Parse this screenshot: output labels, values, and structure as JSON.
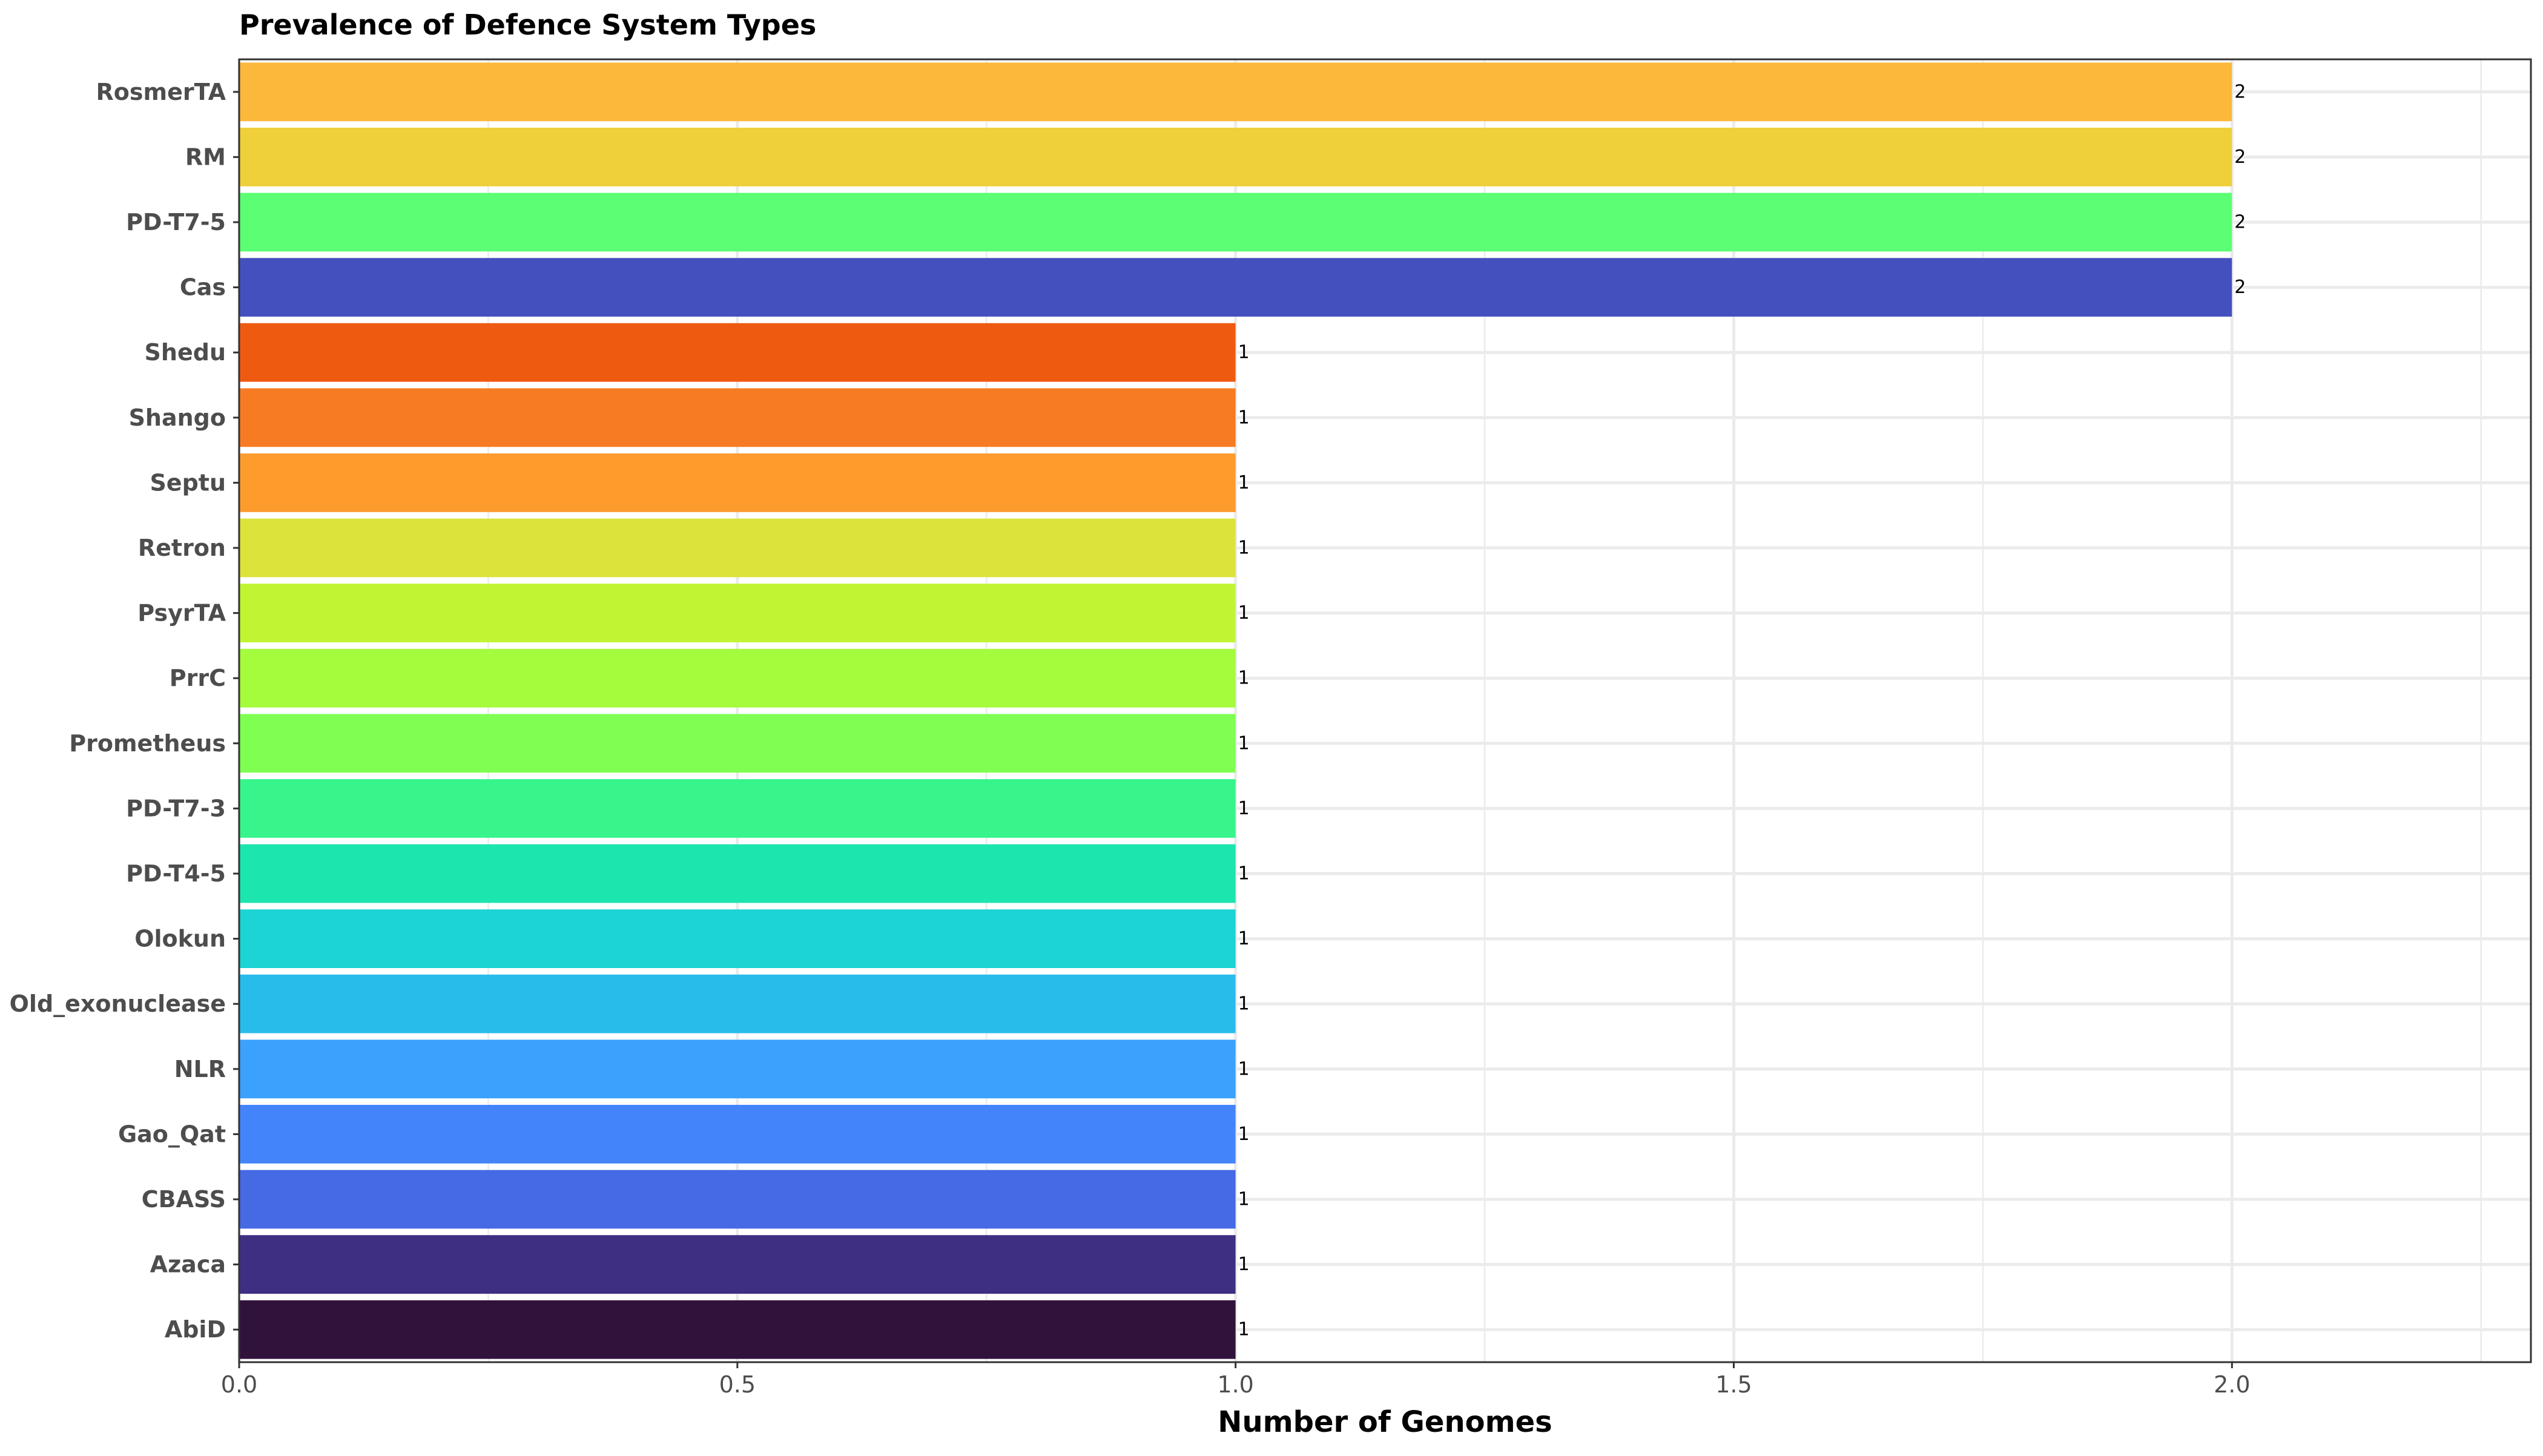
{
  "chart_data": {
    "type": "bar",
    "orientation": "horizontal",
    "title": "Prevalence of Defence System Types",
    "xlabel": "Number of Genomes",
    "ylabel": "",
    "xlim": [
      0,
      2.3
    ],
    "x_ticks": [
      "0.0",
      "0.5",
      "1.0",
      "1.5",
      "2.0"
    ],
    "grid": true,
    "categories": [
      "RosmerTA",
      "RM",
      "PD-T7-5",
      "Cas",
      "Shedu",
      "Shango",
      "Septu",
      "Retron",
      "PsyrTA",
      "PrrC",
      "Prometheus",
      "PD-T7-3",
      "PD-T4-5",
      "Olokun",
      "Old_exonuclease",
      "NLR",
      "Gao_Qat",
      "CBASS",
      "Azaca",
      "AbiD"
    ],
    "values": [
      2,
      2,
      2,
      2,
      1,
      1,
      1,
      1,
      1,
      1,
      1,
      1,
      1,
      1,
      1,
      1,
      1,
      1,
      1,
      1
    ],
    "data_labels": [
      "2",
      "2",
      "2",
      "2",
      "1",
      "1",
      "1",
      "1",
      "1",
      "1",
      "1",
      "1",
      "1",
      "1",
      "1",
      "1",
      "1",
      "1",
      "1",
      "1"
    ],
    "colors": [
      "#FBB83A",
      "#EFCF3A",
      "#5CFF74",
      "#4550BF",
      "#EF5A11",
      "#F77B22",
      "#FE9B2D",
      "#DCE33B",
      "#C1F534",
      "#A4FC3C",
      "#7FFF52",
      "#37F58B",
      "#1CE5AE",
      "#1BD4D3",
      "#28BCEB",
      "#3AA2FC",
      "#4484FB",
      "#4669E4",
      "#3E2F82",
      "#30123B"
    ]
  }
}
